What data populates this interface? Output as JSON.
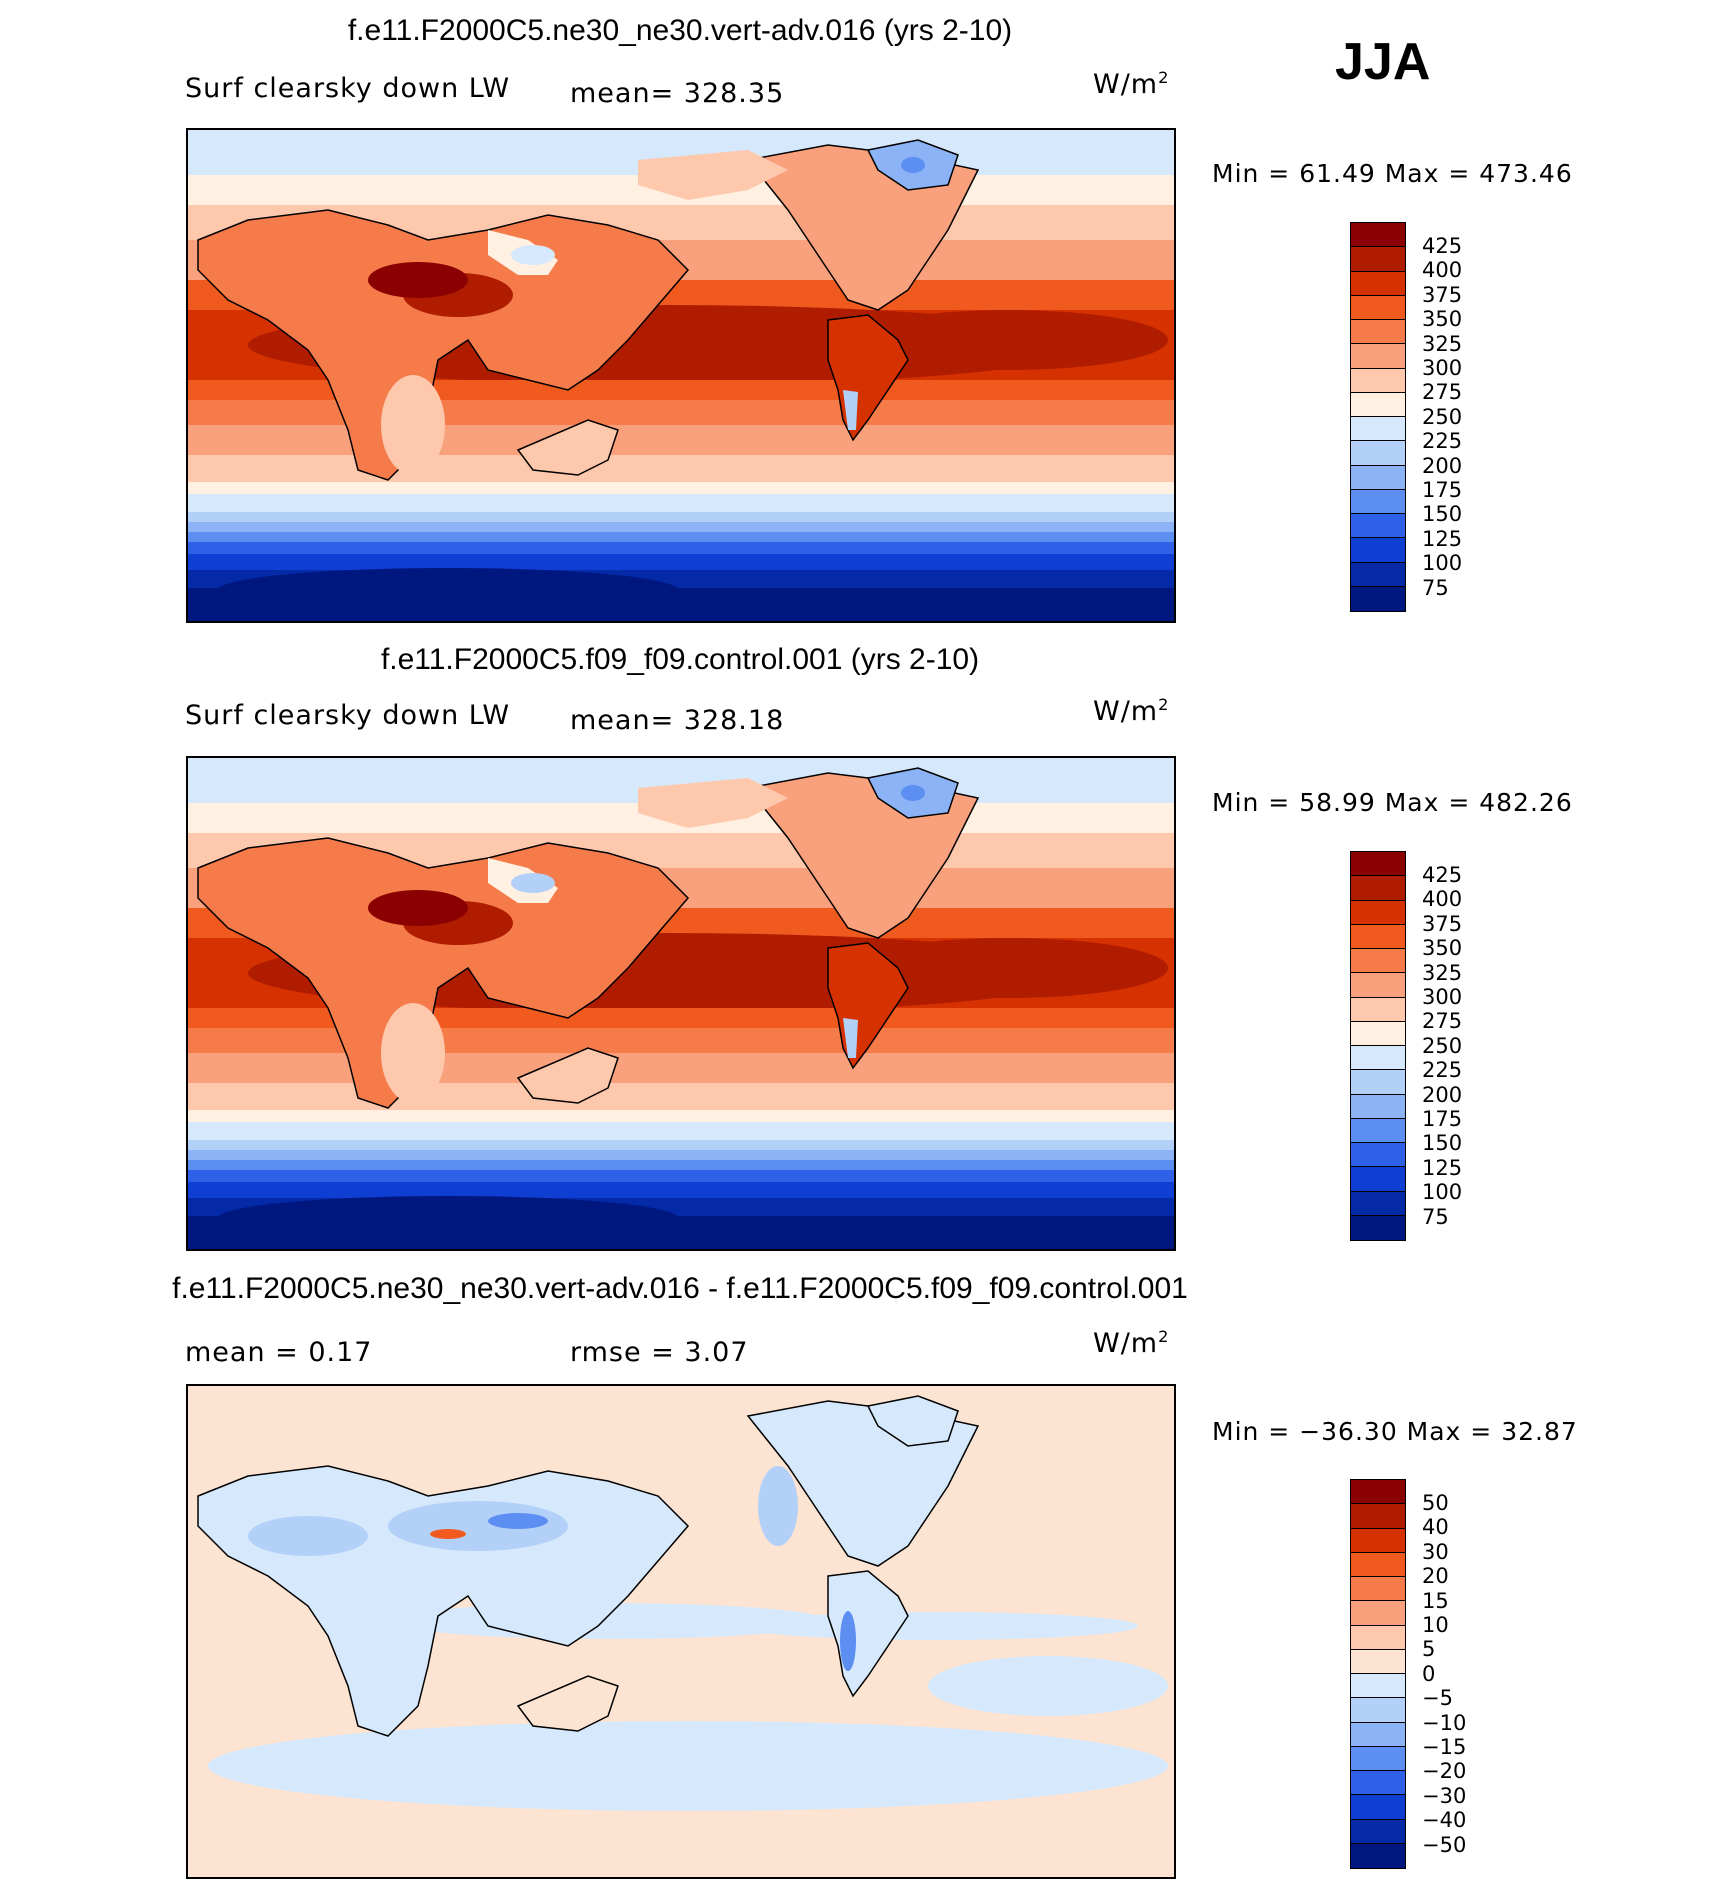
{
  "season": "JJA",
  "panels": [
    {
      "title": "f.e11.F2000C5.ne30_ne30.vert-adv.016 (yrs 2-10)",
      "left_label": "Surf clearsky down LW",
      "mid_label": "mean= 328.35",
      "units": "W/m",
      "units_sup": "2",
      "minmax": "Min =   61.49 Max = 473.46",
      "legend_labels": [
        "425",
        "400",
        "375",
        "350",
        "325",
        "300",
        "275",
        "250",
        "225",
        "200",
        "175",
        "150",
        "125",
        "100",
        "75"
      ]
    },
    {
      "title": "f.e11.F2000C5.f09_f09.control.001 (yrs 2-10)",
      "left_label": "Surf clearsky down LW",
      "mid_label": "mean= 328.18",
      "units": "W/m",
      "units_sup": "2",
      "minmax": "Min =   58.99 Max = 482.26",
      "legend_labels": [
        "425",
        "400",
        "375",
        "350",
        "325",
        "300",
        "275",
        "250",
        "225",
        "200",
        "175",
        "150",
        "125",
        "100",
        "75"
      ]
    },
    {
      "title": "f.e11.F2000C5.ne30_ne30.vert-adv.016 - f.e11.F2000C5.f09_f09.control.001",
      "left_label": "mean =    0.17",
      "mid_label": "rmse =    3.07",
      "units": "W/m",
      "units_sup": "2",
      "minmax": "Min = −36.30 Max =   32.87",
      "legend_labels": [
        "50",
        "40",
        "30",
        "20",
        "15",
        "10",
        "5",
        "0",
        "−5",
        "−10",
        "−15",
        "−20",
        "−30",
        "−40",
        "−50"
      ]
    }
  ],
  "colors": {
    "abs_scale": [
      "#8b0000",
      "#b01c00",
      "#d63100",
      "#f15a1e",
      "#f57b4b",
      "#f9a07c",
      "#fdc8ac",
      "#fff0e2",
      "#d6e8fb",
      "#b3d0f8",
      "#8cb3f5",
      "#5d8ef2",
      "#2f61e8",
      "#0f3ed3",
      "#042aa8",
      "#011780"
    ],
    "diff_scale": [
      "#8b0000",
      "#b01c00",
      "#d63100",
      "#f15a1e",
      "#f57b4b",
      "#f9a07c",
      "#fdc8ac",
      "#fde4d2",
      "#d6e8fb",
      "#b3d0f8",
      "#8cb3f5",
      "#5d8ef2",
      "#2f61e8",
      "#0f3ed3",
      "#042aa8",
      "#011780"
    ]
  }
}
